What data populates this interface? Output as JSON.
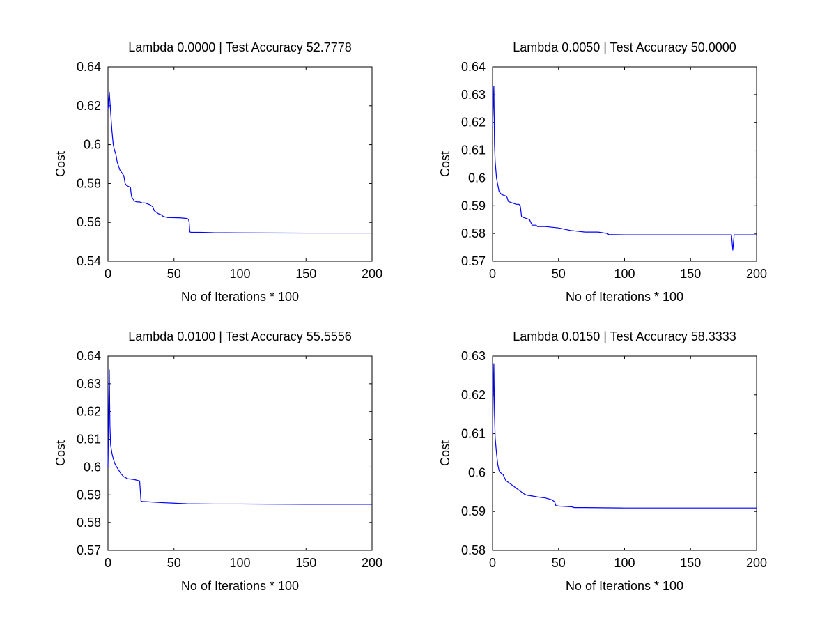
{
  "figure": {
    "background": "#ffffff",
    "line_color": "#0000ff",
    "axes_color": "#000000"
  },
  "chart_data": [
    {
      "type": "line",
      "title": "Lambda 0.0000 | Test Accuracy 52.7778",
      "xlabel": "No of Iterations * 100",
      "ylabel": "Cost",
      "xlim": [
        0,
        200
      ],
      "ylim": [
        0.54,
        0.64
      ],
      "xticks": [
        0,
        50,
        100,
        150,
        200
      ],
      "xtick_labels": [
        "0",
        "50",
        "100",
        "150",
        "200"
      ],
      "yticks": [
        0.54,
        0.56,
        0.58,
        0.6,
        0.62,
        0.64
      ],
      "ytick_labels": [
        "0.54",
        "0.56",
        "0.58",
        "0.6",
        "0.62",
        "0.64"
      ],
      "series": [
        {
          "name": "cost",
          "x": [
            0,
            1,
            2,
            3,
            4,
            5,
            6,
            7,
            8,
            9,
            10,
            12,
            13,
            14,
            17,
            17.5,
            18,
            19,
            20,
            22,
            24,
            26,
            28,
            30,
            32,
            34,
            35,
            37,
            38,
            40,
            42,
            45,
            50,
            55,
            60,
            61,
            61.5,
            62,
            63,
            70,
            80,
            100,
            150,
            200
          ],
          "y": [
            0.618,
            0.627,
            0.617,
            0.607,
            0.6,
            0.597,
            0.595,
            0.591,
            0.589,
            0.587,
            0.586,
            0.584,
            0.58,
            0.579,
            0.578,
            0.575,
            0.573,
            0.572,
            0.571,
            0.5705,
            0.5705,
            0.57,
            0.57,
            0.5695,
            0.569,
            0.568,
            0.566,
            0.565,
            0.5645,
            0.564,
            0.563,
            0.5625,
            0.5624,
            0.5623,
            0.562,
            0.5615,
            0.56,
            0.5551,
            0.5549,
            0.5549,
            0.5547,
            0.5546,
            0.5545,
            0.5545
          ]
        }
      ]
    },
    {
      "type": "line",
      "title": "Lambda 0.0050 | Test Accuracy 50.0000",
      "xlabel": "No of Iterations * 100",
      "ylabel": "Cost",
      "xlim": [
        0,
        200
      ],
      "ylim": [
        0.57,
        0.64
      ],
      "xticks": [
        0,
        50,
        100,
        150,
        200
      ],
      "xtick_labels": [
        "0",
        "50",
        "100",
        "150",
        "200"
      ],
      "yticks": [
        0.57,
        0.58,
        0.59,
        0.6,
        0.61,
        0.62,
        0.63,
        0.64
      ],
      "ytick_labels": [
        "0.57",
        "0.58",
        "0.59",
        "0.6",
        "0.61",
        "0.62",
        "0.63",
        "0.64"
      ],
      "series": [
        {
          "name": "cost",
          "x": [
            0,
            1,
            1.5,
            2,
            3,
            4,
            5,
            6,
            7,
            10,
            11,
            12,
            15,
            18,
            20,
            21,
            22,
            25,
            28,
            29,
            30,
            33,
            34,
            35,
            40,
            50,
            55,
            60,
            61,
            70,
            80,
            87,
            88,
            100,
            150,
            180,
            181,
            182,
            183,
            184,
            200
          ],
          "y": [
            0.618,
            0.633,
            0.612,
            0.606,
            0.6,
            0.5975,
            0.595,
            0.5945,
            0.594,
            0.5935,
            0.593,
            0.5915,
            0.591,
            0.5905,
            0.5905,
            0.59,
            0.586,
            0.5855,
            0.585,
            0.584,
            0.583,
            0.583,
            0.5825,
            0.5825,
            0.5825,
            0.582,
            0.5815,
            0.581,
            0.581,
            0.5805,
            0.5805,
            0.58,
            0.5796,
            0.5795,
            0.5795,
            0.5795,
            0.5795,
            0.574,
            0.5795,
            0.5795,
            0.5795
          ]
        }
      ]
    },
    {
      "type": "line",
      "title": "Lambda 0.0100 | Test Accuracy 55.5556",
      "xlabel": "No of Iterations * 100",
      "ylabel": "Cost",
      "xlim": [
        0,
        200
      ],
      "ylim": [
        0.57,
        0.64
      ],
      "xticks": [
        0,
        50,
        100,
        150,
        200
      ],
      "xtick_labels": [
        "0",
        "50",
        "100",
        "150",
        "200"
      ],
      "yticks": [
        0.57,
        0.58,
        0.59,
        0.6,
        0.61,
        0.62,
        0.63,
        0.64
      ],
      "ytick_labels": [
        "0.57",
        "0.58",
        "0.59",
        "0.6",
        "0.61",
        "0.62",
        "0.63",
        "0.64"
      ],
      "series": [
        {
          "name": "cost",
          "x": [
            0,
            1,
            1.5,
            2,
            3,
            4,
            5,
            6,
            8,
            10,
            11,
            12,
            15,
            20,
            24,
            25,
            26,
            30,
            40,
            50,
            60,
            80,
            100,
            150,
            200
          ],
          "y": [
            0.6,
            0.635,
            0.615,
            0.608,
            0.605,
            0.603,
            0.6015,
            0.6005,
            0.599,
            0.5975,
            0.597,
            0.5965,
            0.5958,
            0.5955,
            0.595,
            0.5878,
            0.5876,
            0.5875,
            0.5872,
            0.587,
            0.5868,
            0.5867,
            0.5867,
            0.5866,
            0.5866
          ]
        }
      ]
    },
    {
      "type": "line",
      "title": "Lambda 0.0150 | Test Accuracy 58.3333",
      "xlabel": "No of Iterations * 100",
      "ylabel": "Cost",
      "xlim": [
        0,
        200
      ],
      "ylim": [
        0.58,
        0.63
      ],
      "xticks": [
        0,
        50,
        100,
        150,
        200
      ],
      "xtick_labels": [
        "0",
        "50",
        "100",
        "150",
        "200"
      ],
      "yticks": [
        0.58,
        0.59,
        0.6,
        0.61,
        0.62,
        0.63
      ],
      "ytick_labels": [
        "0.58",
        "0.59",
        "0.6",
        "0.61",
        "0.62",
        "0.63"
      ],
      "series": [
        {
          "name": "cost",
          "x": [
            0,
            1,
            1.5,
            2,
            3,
            4,
            5,
            6,
            8,
            10,
            12,
            14,
            16,
            18,
            20,
            22,
            24,
            26,
            30,
            35,
            40,
            45,
            47,
            48,
            50,
            55,
            60,
            62,
            70,
            100,
            150,
            200
          ],
          "y": [
            0.61,
            0.628,
            0.615,
            0.609,
            0.605,
            0.602,
            0.6005,
            0.6,
            0.5995,
            0.598,
            0.5975,
            0.597,
            0.5965,
            0.596,
            0.5955,
            0.595,
            0.5945,
            0.5942,
            0.594,
            0.5937,
            0.5935,
            0.593,
            0.5925,
            0.5915,
            0.5914,
            0.5913,
            0.5912,
            0.591,
            0.591,
            0.5909,
            0.5909,
            0.5909
          ]
        }
      ]
    }
  ]
}
